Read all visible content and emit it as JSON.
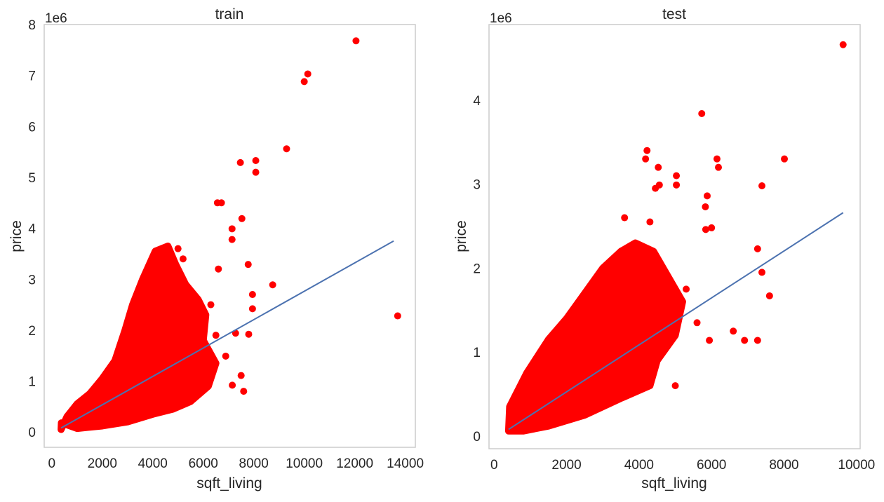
{
  "chart_data": [
    {
      "type": "scatter",
      "title": "train",
      "xlabel": "sqft_living",
      "ylabel": "price",
      "y_offset_label": "1e6",
      "xlim": [
        -300,
        14400
      ],
      "ylim": [
        -0.3,
        8.0
      ],
      "xticks": [
        0,
        2000,
        4000,
        6000,
        8000,
        10000,
        12000,
        14000
      ],
      "xtick_labels": [
        "0",
        "2000",
        "4000",
        "6000",
        "8000",
        "10000",
        "12000",
        "14000"
      ],
      "yticks": [
        0,
        1,
        2,
        3,
        4,
        5,
        6,
        7,
        8
      ],
      "ytick_labels": [
        "0",
        "1",
        "2",
        "3",
        "4",
        "5",
        "6",
        "7",
        "8"
      ],
      "grid": false,
      "colors": {
        "points": "#ff0000",
        "line": "#4c72b0",
        "frame": "#cccccc"
      },
      "dense_region": [
        [
          370,
          0.05
        ],
        [
          600,
          0.3
        ],
        [
          1000,
          0.55
        ],
        [
          1500,
          0.75
        ],
        [
          2000,
          1.05
        ],
        [
          2500,
          1.4
        ],
        [
          2900,
          2.0
        ],
        [
          3200,
          2.5
        ],
        [
          3600,
          3.0
        ],
        [
          4100,
          3.55
        ],
        [
          4600,
          3.65
        ],
        [
          4900,
          3.3
        ],
        [
          5300,
          2.9
        ],
        [
          5800,
          2.6
        ],
        [
          6100,
          2.3
        ],
        [
          6000,
          1.8
        ],
        [
          6500,
          1.35
        ],
        [
          6200,
          0.9
        ],
        [
          5500,
          0.6
        ],
        [
          4800,
          0.45
        ],
        [
          4000,
          0.35
        ],
        [
          3000,
          0.2
        ],
        [
          2000,
          0.12
        ],
        [
          1000,
          0.07
        ],
        [
          380,
          0.18
        ]
      ],
      "points": [
        [
          12050,
          7.68
        ],
        [
          10140,
          7.03
        ],
        [
          10000,
          6.88
        ],
        [
          9300,
          5.56
        ],
        [
          8080,
          5.33
        ],
        [
          8080,
          5.1
        ],
        [
          7470,
          5.29
        ],
        [
          6560,
          4.5
        ],
        [
          6720,
          4.5
        ],
        [
          7530,
          4.19
        ],
        [
          7140,
          3.99
        ],
        [
          7140,
          3.78
        ],
        [
          7780,
          3.29
        ],
        [
          8750,
          2.89
        ],
        [
          13700,
          2.28
        ],
        [
          7950,
          2.7
        ],
        [
          7950,
          2.42
        ],
        [
          7800,
          1.92
        ],
        [
          7280,
          1.94
        ],
        [
          6890,
          1.49
        ],
        [
          7500,
          1.11
        ],
        [
          7150,
          0.92
        ],
        [
          7600,
          0.8
        ],
        [
          6110,
          0.96
        ],
        [
          6500,
          1.9
        ],
        [
          6300,
          2.5
        ],
        [
          5200,
          3.4
        ],
        [
          5000,
          3.6
        ],
        [
          6600,
          3.2
        ]
      ],
      "regression_line": {
        "x": [
          370,
          13540
        ],
        "y": [
          0.08,
          3.75
        ]
      }
    },
    {
      "type": "scatter",
      "title": "test",
      "xlabel": "sqft_living",
      "ylabel": "price",
      "y_offset_label": "1e6",
      "xlim": [
        -140,
        10100
      ],
      "ylim": [
        -0.15,
        4.9
      ],
      "xticks": [
        0,
        2000,
        4000,
        6000,
        8000,
        10000
      ],
      "xtick_labels": [
        "0",
        "2000",
        "4000",
        "6000",
        "8000",
        "10000"
      ],
      "yticks": [
        0,
        1,
        2,
        3,
        4
      ],
      "ytick_labels": [
        "0",
        "1",
        "2",
        "3",
        "4"
      ],
      "grid": false,
      "colors": {
        "points": "#ff0000",
        "line": "#4c72b0",
        "frame": "#cccccc"
      },
      "dense_region": [
        [
          400,
          0.06
        ],
        [
          430,
          0.35
        ],
        [
          900,
          0.75
        ],
        [
          1500,
          1.15
        ],
        [
          2000,
          1.4
        ],
        [
          2500,
          1.7
        ],
        [
          3000,
          2.0
        ],
        [
          3500,
          2.2
        ],
        [
          3900,
          2.3
        ],
        [
          4400,
          2.2
        ],
        [
          4800,
          1.9
        ],
        [
          5200,
          1.6
        ],
        [
          5000,
          1.2
        ],
        [
          4500,
          0.9
        ],
        [
          4300,
          0.6
        ],
        [
          3500,
          0.45
        ],
        [
          2500,
          0.25
        ],
        [
          1500,
          0.12
        ],
        [
          800,
          0.06
        ]
      ],
      "points": [
        [
          9630,
          4.66
        ],
        [
          5730,
          3.84
        ],
        [
          4220,
          3.4
        ],
        [
          4180,
          3.3
        ],
        [
          6150,
          3.3
        ],
        [
          6190,
          3.2
        ],
        [
          4530,
          3.2
        ],
        [
          8010,
          3.3
        ],
        [
          7390,
          2.98
        ],
        [
          5030,
          3.1
        ],
        [
          5030,
          2.99
        ],
        [
          4560,
          2.99
        ],
        [
          4450,
          2.95
        ],
        [
          5880,
          2.86
        ],
        [
          5840,
          2.46
        ],
        [
          6000,
          2.48
        ],
        [
          5830,
          2.73
        ],
        [
          7270,
          2.23
        ],
        [
          7390,
          1.95
        ],
        [
          7600,
          1.67
        ],
        [
          6910,
          1.14
        ],
        [
          7270,
          1.14
        ],
        [
          6600,
          1.25
        ],
        [
          5940,
          1.14
        ],
        [
          5000,
          0.6
        ],
        [
          5300,
          1.75
        ],
        [
          5600,
          1.35
        ],
        [
          4300,
          2.55
        ],
        [
          3600,
          2.6
        ]
      ],
      "regression_line": {
        "x": [
          400,
          9630
        ],
        "y": [
          0.08,
          2.66
        ]
      }
    }
  ]
}
